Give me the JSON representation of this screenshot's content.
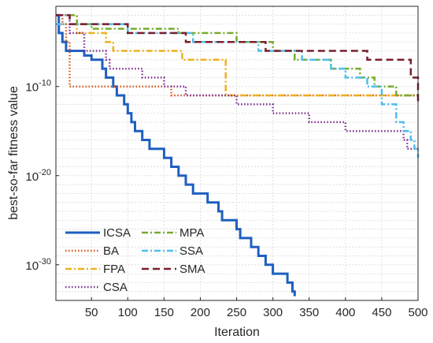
{
  "chart_data": {
    "type": "line",
    "title": "",
    "xlabel": "Iteration",
    "ylabel": "best-so-far fitness value",
    "yscale": "log",
    "xlim": [
      1,
      500
    ],
    "ylim": [
      1e-34,
      0.1
    ],
    "xticks": [
      50,
      100,
      150,
      200,
      250,
      300,
      350,
      400,
      450,
      500
    ],
    "xtick_labels": [
      "50",
      "100",
      "150",
      "200",
      "250",
      "300",
      "350",
      "400",
      "450",
      "500"
    ],
    "yticks": [
      1e-30,
      1e-20,
      1e-10
    ],
    "ytick_labels": [
      {
        "base": "10",
        "exp": "-30"
      },
      {
        "base": "10",
        "exp": "-20"
      },
      {
        "base": "10",
        "exp": "-10"
      }
    ],
    "grid": true,
    "legend_position": "bottom-left",
    "series": [
      {
        "name": "ICSA",
        "color": "#1f5fbf",
        "dash": "solid",
        "width": 3,
        "points": [
          [
            1,
            0.01
          ],
          [
            5,
            0.0001
          ],
          [
            10,
            1e-05
          ],
          [
            15,
            1e-06
          ],
          [
            20,
            1e-06
          ],
          [
            30,
            1e-06
          ],
          [
            40,
            3e-07
          ],
          [
            50,
            1e-07
          ],
          [
            55,
            1e-07
          ],
          [
            60,
            1e-07
          ],
          [
            65,
            1e-08
          ],
          [
            70,
            1e-09
          ],
          [
            75,
            1e-09
          ],
          [
            80,
            1e-10
          ],
          [
            85,
            1e-11
          ],
          [
            90,
            1e-11
          ],
          [
            95,
            1e-12
          ],
          [
            100,
            1e-13
          ],
          [
            105,
            1e-14
          ],
          [
            110,
            1e-15
          ],
          [
            115,
            1e-15
          ],
          [
            120,
            1e-16
          ],
          [
            130,
            1e-17
          ],
          [
            140,
            1e-17
          ],
          [
            150,
            1e-18
          ],
          [
            155,
            1e-18
          ],
          [
            160,
            1e-19
          ],
          [
            170,
            1e-20
          ],
          [
            175,
            1e-20
          ],
          [
            180,
            1e-21
          ],
          [
            190,
            1e-22
          ],
          [
            200,
            1e-22
          ],
          [
            210,
            1e-23
          ],
          [
            220,
            1e-23
          ],
          [
            225,
            1e-24
          ],
          [
            230,
            1e-25
          ],
          [
            240,
            1e-25
          ],
          [
            250,
            1e-26
          ],
          [
            255,
            1e-27
          ],
          [
            265,
            1e-27
          ],
          [
            270,
            1e-28
          ],
          [
            280,
            1e-29
          ],
          [
            290,
            1e-30
          ],
          [
            300,
            1e-31
          ],
          [
            310,
            1e-31
          ],
          [
            320,
            1e-32
          ],
          [
            327,
            1e-33
          ],
          [
            330,
            3e-34
          ]
        ]
      },
      {
        "name": "BA",
        "color": "#d95319",
        "dash": "dotted",
        "width": 2.5,
        "points": [
          [
            1,
            0.01
          ],
          [
            10,
            0.001
          ],
          [
            15,
            1e-05
          ],
          [
            20,
            1e-10
          ],
          [
            160,
            1e-10
          ],
          [
            160,
            1e-11
          ],
          [
            500,
            1e-11
          ]
        ]
      },
      {
        "name": "FPA",
        "color": "#edb120",
        "dash": "dashdot",
        "width": 2.5,
        "points": [
          [
            1,
            0.01
          ],
          [
            30,
            0.0001
          ],
          [
            70,
            1e-05
          ],
          [
            80,
            1e-06
          ],
          [
            170,
            1e-06
          ],
          [
            175,
            1e-07
          ],
          [
            230,
            1e-07
          ],
          [
            235,
            1e-11
          ],
          [
            500,
            1e-11
          ]
        ]
      },
      {
        "name": "CSA",
        "color": "#7e2f8e",
        "dash": "dotted",
        "width": 2.5,
        "points": [
          [
            1,
            0.01
          ],
          [
            20,
            0.0001
          ],
          [
            40,
            1e-06
          ],
          [
            70,
            1e-07
          ],
          [
            75,
            1e-08
          ],
          [
            120,
            1e-09
          ],
          [
            150,
            1e-10
          ],
          [
            180,
            1e-11
          ],
          [
            240,
            1e-11
          ],
          [
            250,
            1e-12
          ],
          [
            300,
            1e-13
          ],
          [
            350,
            1e-14
          ],
          [
            400,
            1e-15
          ],
          [
            450,
            1e-15
          ],
          [
            480,
            1e-16
          ],
          [
            485,
            1e-17
          ],
          [
            500,
            1e-17
          ]
        ]
      },
      {
        "name": "MPA",
        "color": "#77ac30",
        "dash": "dashdot",
        "width": 2.5,
        "points": [
          [
            1,
            0.01
          ],
          [
            30,
            0.001
          ],
          [
            50,
            0.0003
          ],
          [
            150,
            0.0003
          ],
          [
            170,
            0.0001
          ],
          [
            200,
            0.0001
          ],
          [
            250,
            1e-05
          ],
          [
            300,
            1e-06
          ],
          [
            330,
            1e-07
          ],
          [
            380,
            1e-08
          ],
          [
            420,
            1e-09
          ],
          [
            440,
            1e-10
          ],
          [
            470,
            1e-11
          ],
          [
            500,
            1e-11
          ]
        ]
      },
      {
        "name": "SSA",
        "color": "#4dbeee",
        "dash": "dashdot",
        "width": 2.5,
        "points": [
          [
            1,
            0.001
          ],
          [
            10,
            0.001
          ],
          [
            30,
            0.001
          ],
          [
            100,
            0.0001
          ],
          [
            190,
            1e-05
          ],
          [
            240,
            1e-05
          ],
          [
            280,
            1e-06
          ],
          [
            340,
            1e-07
          ],
          [
            380,
            1e-08
          ],
          [
            400,
            1e-09
          ],
          [
            430,
            1e-10
          ],
          [
            450,
            1e-12
          ],
          [
            470,
            1e-14
          ],
          [
            480,
            1e-15
          ],
          [
            490,
            1e-16
          ],
          [
            495,
            1e-17
          ],
          [
            500,
            1e-18
          ]
        ]
      },
      {
        "name": "SMA",
        "color": "#7a1f2b",
        "dash": "dashed",
        "width": 2.5,
        "points": [
          [
            1,
            0.01
          ],
          [
            20,
            0.001
          ],
          [
            100,
            0.0001
          ],
          [
            180,
            1e-05
          ],
          [
            280,
            1e-05
          ],
          [
            290,
            1e-06
          ],
          [
            420,
            1e-06
          ],
          [
            430,
            1e-07
          ],
          [
            480,
            1e-07
          ],
          [
            490,
            1e-09
          ],
          [
            500,
            1e-10
          ],
          [
            500,
            1e-12
          ]
        ]
      }
    ]
  }
}
